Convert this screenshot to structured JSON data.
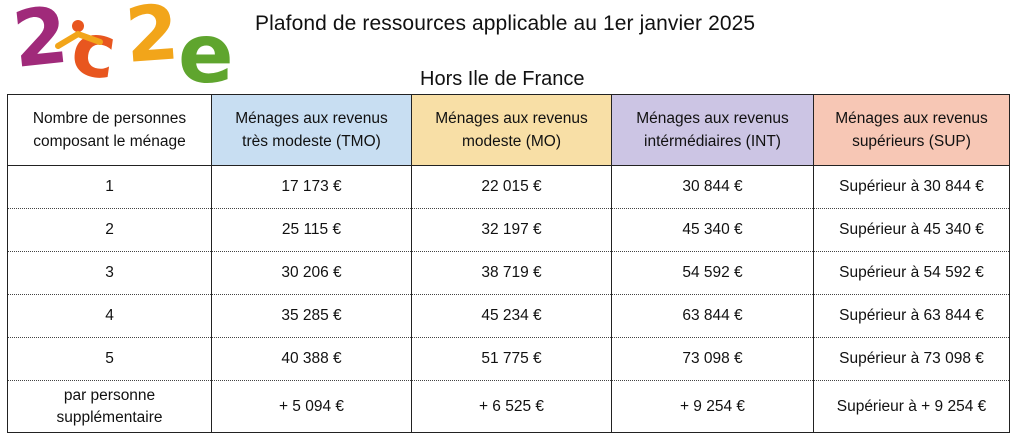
{
  "logo": {
    "text": "2c2e",
    "colors": [
      "#a02a7a",
      "#e8561f",
      "#f2a51a",
      "#5fa52e",
      "#8bc540"
    ]
  },
  "header": {
    "title": "Plafond de ressources applicable au 1er janvier 2025",
    "subtitle": "Hors Ile de France"
  },
  "table": {
    "columns": [
      "Nombre de personnes\ncomposant le ménage",
      "Ménages aux revenus\ntrès modeste (TMO)",
      "Ménages aux revenus\nmodeste (MO)",
      "Ménages aux revenus\nintérmédiaires (INT)",
      "Ménages aux revenus\nsupérieurs (SUP)"
    ],
    "header_colors": [
      "#ffffff",
      "#c8def2",
      "#f8dfa6",
      "#ccc5e4",
      "#f7c7b5"
    ],
    "rows": [
      [
        "1",
        "17 173 €",
        "22 015 €",
        "30 844 €",
        "Supérieur à 30 844 €"
      ],
      [
        "2",
        "25 115 €",
        "32 197 €",
        "45 340 €",
        "Supérieur à 45 340 €"
      ],
      [
        "3",
        "30 206 €",
        "38 719 €",
        "54 592 €",
        "Supérieur à 54 592 €"
      ],
      [
        "4",
        "35 285 €",
        "45 234 €",
        "63 844 €",
        "Supérieur à 63 844 €"
      ],
      [
        "5",
        "40 388 €",
        "51 775 €",
        "73 098 €",
        "Supérieur à 73 098 €"
      ],
      [
        "par personne\nsupplémentaire",
        "+ 5 094 €",
        "+ 6 525 €",
        "+ 9 254 €",
        "Supérieur à + 9 254 €"
      ]
    ]
  }
}
